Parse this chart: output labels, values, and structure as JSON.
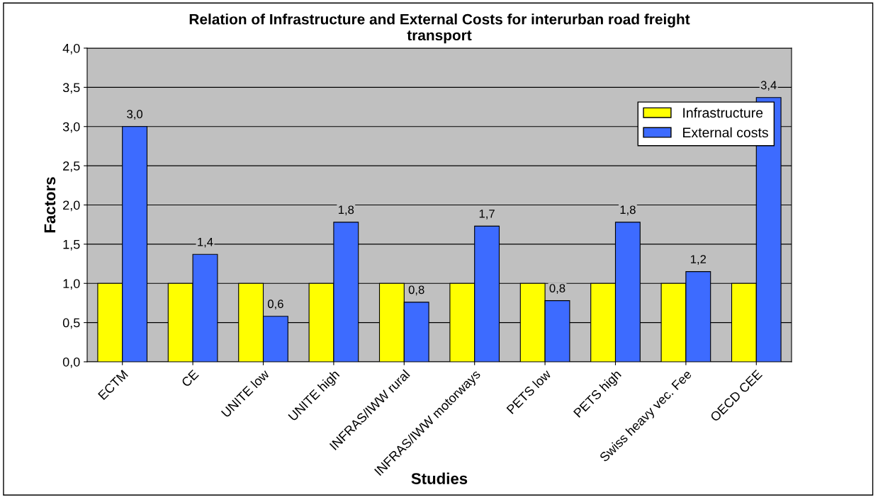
{
  "chart_data": {
    "type": "bar",
    "title": "Relation of Infrastructure and External Costs for interurban road freight\ntransport",
    "xlabel": "Studies",
    "ylabel": "Factors",
    "categories": [
      "ECTM",
      "CE",
      "UNITE low",
      "UNITE high",
      "INFRAS/IWW rural",
      "INFRAS/IWW motorways",
      "PETS low",
      "PETS high",
      "Swiss heavy vec. Fee",
      "OECD CEE"
    ],
    "series": [
      {
        "name": "Infrastructure",
        "color": "#ffff00",
        "values": [
          1.0,
          1.0,
          1.0,
          1.0,
          1.0,
          1.0,
          1.0,
          1.0,
          1.0,
          1.0
        ]
      },
      {
        "name": "External costs",
        "color": "#3d6bff",
        "values": [
          3.0,
          1.37,
          0.58,
          1.78,
          0.76,
          1.73,
          0.78,
          1.78,
          1.15,
          3.37
        ],
        "value_labels": [
          "3,0",
          "1,4",
          "0,6",
          "1,8",
          "0,8",
          "1,7",
          "0,8",
          "1,8",
          "1,2",
          "3,4"
        ]
      }
    ],
    "ylim": [
      0,
      4
    ],
    "yticks": [
      {
        "value": 0,
        "label": "0,0"
      },
      {
        "value": 0.5,
        "label": "0,5"
      },
      {
        "value": 1,
        "label": "1,0"
      },
      {
        "value": 1.5,
        "label": "1,5"
      },
      {
        "value": 2,
        "label": "2,0"
      },
      {
        "value": 2.5,
        "label": "2,5"
      },
      {
        "value": 3,
        "label": "3,0"
      },
      {
        "value": 3.5,
        "label": "3,5"
      },
      {
        "value": 4,
        "label": "4,0"
      }
    ],
    "grid": "y",
    "legend": "top right"
  }
}
